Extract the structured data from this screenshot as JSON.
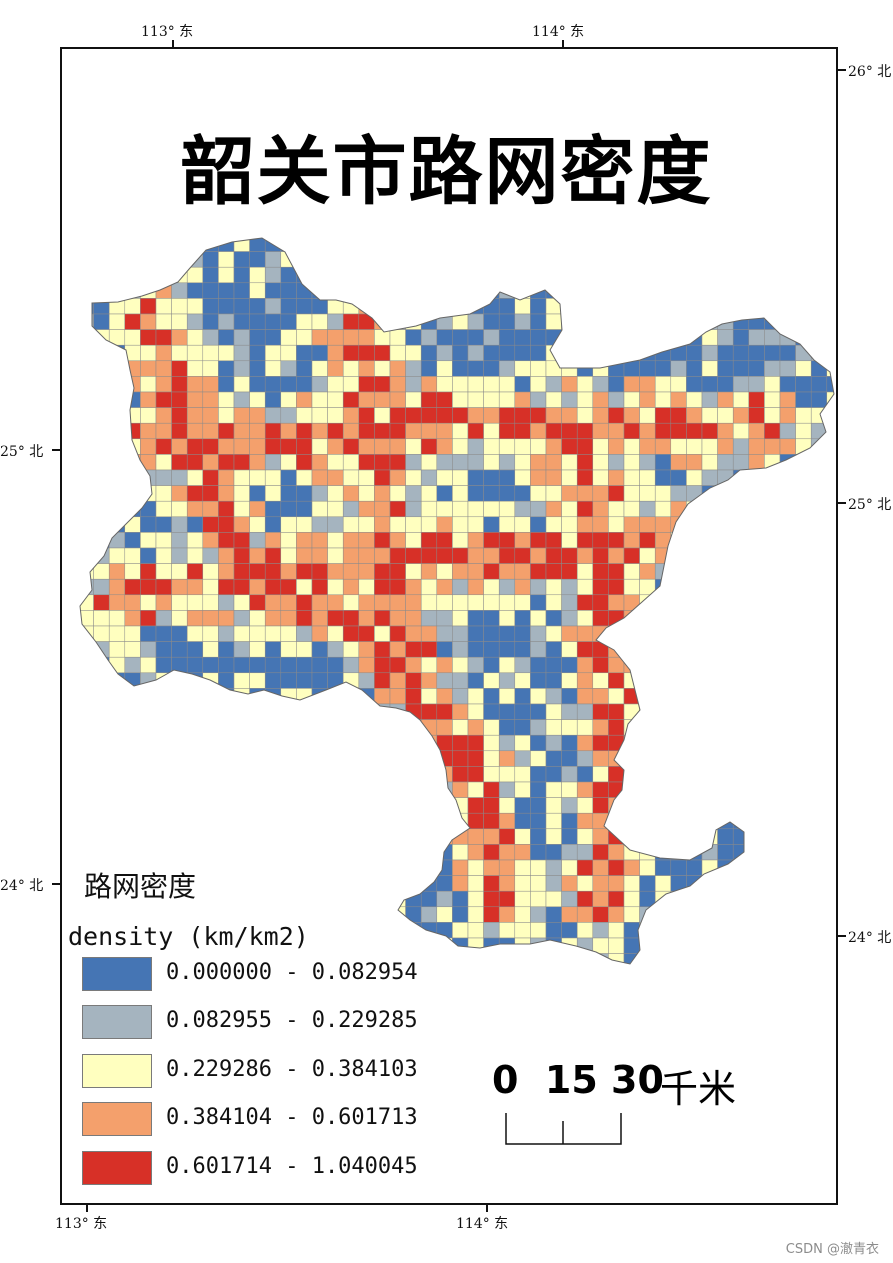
{
  "title": "韶关市路网密度",
  "coords": {
    "top_left": "113° 东",
    "top_right": "114° 东",
    "bottom_left": "113° 东",
    "bottom_right": "114° 东",
    "left_upper": "25° 北",
    "left_lower": "24° 北",
    "right_top": "26° 北",
    "right_mid": "25° 北",
    "right_lower": "24° 北"
  },
  "legend": {
    "title": "路网密度",
    "field": "density (km/km2)",
    "classes": [
      {
        "label": "0.000000 - 0.082954",
        "color": "#4575b4"
      },
      {
        "label": "0.082955 - 0.229285",
        "color": "#a5b4bf"
      },
      {
        "label": "0.229286 - 0.384103",
        "color": "#ffffbf"
      },
      {
        "label": "0.384104 - 0.601713",
        "color": "#f4a06c"
      },
      {
        "label": "0.601714 - 1.040045",
        "color": "#d73027"
      }
    ]
  },
  "scale": {
    "numbers": "0  15 30",
    "unit": "千米"
  },
  "watermark": "CSDN @澈青衣"
}
